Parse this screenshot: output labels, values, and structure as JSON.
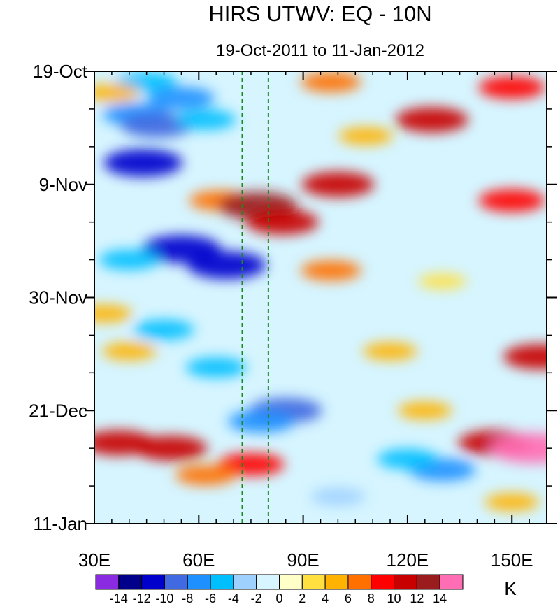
{
  "chart_data": {
    "type": "heatmap",
    "title": "HIRS UTWV: EQ - 10N",
    "subtitle": "19-Oct-2011 to 11-Jan-2012",
    "x_range": [
      30,
      160
    ],
    "x_ticks": [
      {
        "value": 30,
        "label": "30E"
      },
      {
        "value": 60,
        "label": "60E"
      },
      {
        "value": 90,
        "label": "90E"
      },
      {
        "value": 120,
        "label": "120E"
      },
      {
        "value": 150,
        "label": "150E"
      }
    ],
    "y_range_days": [
      0,
      84
    ],
    "y_ticks": [
      {
        "day": 0,
        "label": "19-Oct"
      },
      {
        "day": 21,
        "label": "9-Nov"
      },
      {
        "day": 42,
        "label": "30-Nov"
      },
      {
        "day": 63,
        "label": "21-Dec"
      },
      {
        "day": 84,
        "label": "11-Jan"
      }
    ],
    "reference_lines_lon": [
      72.5,
      80
    ],
    "reference_line_color": "#1a8a1a",
    "colorbar": {
      "unit": "K",
      "levels": [
        -14,
        -12,
        -10,
        -8,
        -6,
        -4,
        -2,
        0,
        2,
        4,
        6,
        8,
        10,
        12,
        14
      ],
      "labels": [
        "-14",
        "-12",
        "-10",
        "-8",
        "-6",
        "-4",
        "-2",
        "0",
        "2",
        "4",
        "6",
        "8",
        "10",
        "12",
        "14"
      ],
      "colors": [
        "#8a2be2",
        "#00008b",
        "#0000cd",
        "#4169e1",
        "#1e90ff",
        "#00bfff",
        "#9fd1ff",
        "#d6f5ff",
        "#ffffc8",
        "#ffe040",
        "#ffb300",
        "#ff7000",
        "#ff0000",
        "#c80000",
        "#9b1c1c",
        "#ff6eb4"
      ]
    },
    "anomaly_features": [
      {
        "lon": 45,
        "day": 2,
        "value": -6
      },
      {
        "lon": 55,
        "day": 5,
        "value": -8
      },
      {
        "lon": 42,
        "day": 8,
        "value": -8
      },
      {
        "lon": 48,
        "day": 10,
        "value": -10
      },
      {
        "lon": 62,
        "day": 9,
        "value": -6
      },
      {
        "lon": 44,
        "day": 17,
        "value": -12
      },
      {
        "lon": 35,
        "day": 4,
        "value": 4
      },
      {
        "lon": 98,
        "day": 2,
        "value": 6
      },
      {
        "lon": 150,
        "day": 3,
        "value": 8
      },
      {
        "lon": 127,
        "day": 9,
        "value": 10
      },
      {
        "lon": 108,
        "day": 12,
        "value": 4
      },
      {
        "lon": 100,
        "day": 21,
        "value": 10
      },
      {
        "lon": 150,
        "day": 24,
        "value": 8
      },
      {
        "lon": 66,
        "day": 24,
        "value": 6
      },
      {
        "lon": 77,
        "day": 25,
        "value": 12
      },
      {
        "lon": 84,
        "day": 28,
        "value": 10
      },
      {
        "lon": 55,
        "day": 33,
        "value": -12
      },
      {
        "lon": 68,
        "day": 36,
        "value": -12
      },
      {
        "lon": 40,
        "day": 35,
        "value": -6
      },
      {
        "lon": 98,
        "day": 37,
        "value": 6
      },
      {
        "lon": 130,
        "day": 39,
        "value": 2
      },
      {
        "lon": 33,
        "day": 45,
        "value": 4
      },
      {
        "lon": 50,
        "day": 48,
        "value": -6
      },
      {
        "lon": 40,
        "day": 52,
        "value": 4
      },
      {
        "lon": 65,
        "day": 55,
        "value": -6
      },
      {
        "lon": 115,
        "day": 52,
        "value": 4
      },
      {
        "lon": 158,
        "day": 53,
        "value": 10
      },
      {
        "lon": 85,
        "day": 63,
        "value": -10
      },
      {
        "lon": 78,
        "day": 65,
        "value": -8
      },
      {
        "lon": 125,
        "day": 63,
        "value": 4
      },
      {
        "lon": 37,
        "day": 69,
        "value": 10
      },
      {
        "lon": 52,
        "day": 70,
        "value": 10
      },
      {
        "lon": 75,
        "day": 73,
        "value": 8
      },
      {
        "lon": 62,
        "day": 75,
        "value": 6
      },
      {
        "lon": 130,
        "day": 74,
        "value": -8
      },
      {
        "lon": 120,
        "day": 72,
        "value": -6
      },
      {
        "lon": 145,
        "day": 69,
        "value": 10
      },
      {
        "lon": 156,
        "day": 70,
        "value": 14
      },
      {
        "lon": 100,
        "day": 79,
        "value": -4
      },
      {
        "lon": 150,
        "day": 80,
        "value": 4
      }
    ]
  }
}
